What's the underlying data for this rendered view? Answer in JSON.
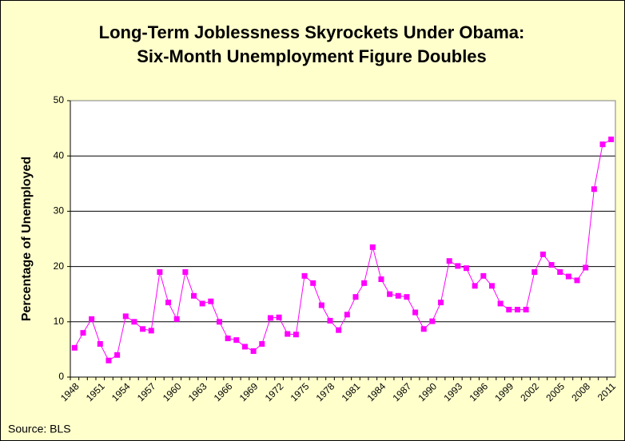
{
  "chart_data": {
    "type": "line",
    "title": "Long-Term Joblessness Skyrockets Under Obama:",
    "subtitle": "Six-Month Unemployment Figure Doubles",
    "y_label": "Percentage of Unemployed",
    "source": "Source: BLS",
    "categories": [
      "1948",
      null,
      null,
      "1951",
      null,
      null,
      "1954",
      null,
      null,
      "1957",
      null,
      null,
      "1960",
      null,
      null,
      "1963",
      null,
      null,
      "1966",
      null,
      null,
      "1969",
      null,
      null,
      "1972",
      null,
      null,
      "1975",
      null,
      null,
      "1978",
      null,
      null,
      "1981",
      null,
      null,
      "1984",
      null,
      null,
      "1987",
      null,
      null,
      "1990",
      null,
      null,
      "1993",
      null,
      null,
      "1996",
      null,
      null,
      "1999",
      null,
      null,
      "2002",
      null,
      null,
      "2005",
      null,
      null,
      "2008",
      null,
      null,
      "2011"
    ],
    "values": [
      5.3,
      8,
      10.5,
      6,
      3,
      4,
      11,
      10,
      8.7,
      8.4,
      19,
      13.5,
      10.5,
      19,
      14.7,
      13.3,
      13.7,
      10,
      7,
      6.7,
      5.5,
      4.7,
      6,
      10.7,
      10.8,
      7.8,
      7.7,
      18.3,
      17,
      13,
      10.2,
      8.5,
      11.3,
      14.5,
      17,
      23.5,
      17.7,
      15,
      14.7,
      14.5,
      11.7,
      8.7,
      10.1,
      13.5,
      21,
      20.1,
      19.7,
      16.5,
      18.3,
      16.5,
      13.3,
      12.2,
      12.2,
      12.2,
      19,
      22.2,
      20.3,
      19,
      18.2,
      17.5,
      19.8,
      34,
      42.1,
      43
    ],
    "color": "#ff00ff",
    "ylim": [
      0,
      50
    ],
    "yticks": [
      0,
      10,
      20,
      30,
      40,
      50
    ],
    "grid": true
  }
}
